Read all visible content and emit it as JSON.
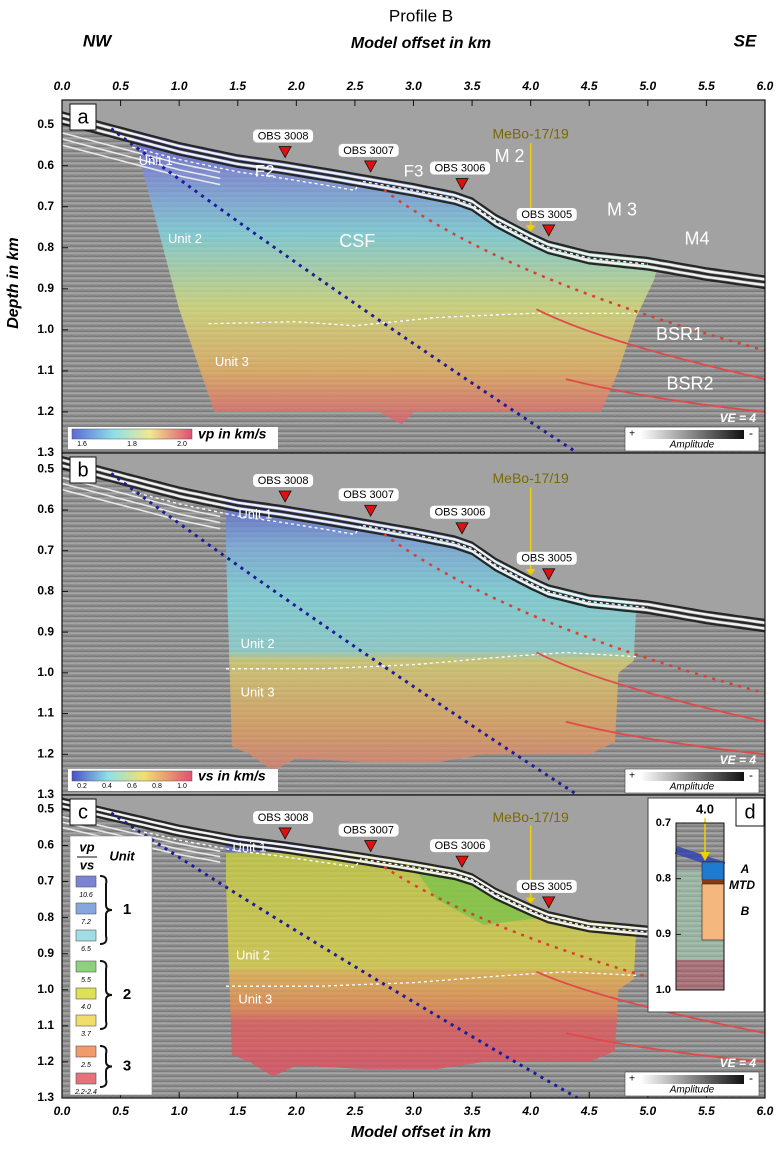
{
  "header": {
    "title": "Profile B",
    "top_axis_label": "Model offset in km",
    "left_direction": "NW",
    "right_direction": "SE",
    "y_axis_label": "Depth in km",
    "bottom_axis_label": "Model offset in km"
  },
  "chart_data": [
    {
      "type": "section",
      "panel_label": "a",
      "xlim": [
        0,
        6
      ],
      "ylim": [
        0.44,
        1.3
      ],
      "xtick_side": "top",
      "xticks": [
        {
          "value": 0,
          "label": "0.0"
        },
        0.5,
        {
          "value": 1,
          "label": "1.0"
        },
        1.5,
        {
          "value": 2,
          "label": "2.0"
        },
        2.5,
        {
          "value": 3,
          "label": "3.0"
        },
        3.5,
        {
          "value": 4,
          "label": "4.0"
        },
        4.5,
        {
          "value": 5,
          "label": "5.0"
        },
        5.5,
        {
          "value": 6,
          "label": "6.0"
        }
      ],
      "yticks": [
        0.5,
        0.6,
        0.7,
        0.8,
        0.9,
        {
          "value": 1,
          "label": "1.0"
        },
        1.1,
        1.2,
        1.3
      ],
      "obs": [
        {
          "label": "OBS 3008",
          "x": 1.87
        },
        {
          "label": "OBS 3007",
          "x": 2.6
        },
        {
          "label": "OBS 3006",
          "x": 3.38
        },
        {
          "label": "OBS 3005",
          "x": 4.12
        }
      ],
      "well": {
        "label": "MeBo-17/19",
        "x": 4.0
      },
      "annotations": [
        "Unit 1",
        "Unit 2",
        "Unit 3",
        "F2",
        "F3",
        "M 2",
        "M 3",
        "M4",
        "CSF",
        "BSR1",
        "BSR2"
      ],
      "colorbar": {
        "label": "vp in km/s",
        "ticks": [
          "1.6",
          "1.8",
          "2.0"
        ]
      },
      "amplitude": {
        "plus": "+",
        "label": "Amplitude",
        "minus": "-"
      },
      "ve": "VE = 4"
    },
    {
      "type": "section",
      "panel_label": "b",
      "xlim": [
        0,
        6
      ],
      "ylim": [
        0.46,
        1.3
      ],
      "yticks": [
        0.5,
        0.6,
        0.7,
        0.8,
        0.9,
        {
          "value": 1,
          "label": "1.0"
        },
        1.1,
        1.2,
        1.3
      ],
      "obs": [
        {
          "label": "OBS 3008",
          "x": 1.87
        },
        {
          "label": "OBS 3007",
          "x": 2.6
        },
        {
          "label": "OBS 3006",
          "x": 3.38
        },
        {
          "label": "OBS 3005",
          "x": 4.12
        }
      ],
      "well": {
        "label": "MeBo-17/19",
        "x": 4.0
      },
      "annotations": [
        "Unit 1",
        "Unit 2",
        "Unit 3"
      ],
      "colorbar": {
        "label": "vs in km/s",
        "ticks": [
          "0.2",
          "0.4",
          "0.6",
          "0.8",
          "1.0"
        ]
      },
      "amplitude": {
        "plus": "+",
        "label": "Amplitude",
        "minus": "-"
      },
      "ve": "VE = 4"
    },
    {
      "type": "section",
      "panel_label": "c",
      "xlim": [
        0,
        6
      ],
      "ylim": [
        0.46,
        1.3
      ],
      "xtick_side": "bottom",
      "xticks": [
        {
          "value": 0,
          "label": "0.0"
        },
        0.5,
        {
          "value": 1,
          "label": "1.0"
        },
        1.5,
        {
          "value": 2,
          "label": "2.0"
        },
        2.5,
        {
          "value": 3,
          "label": "3.0"
        },
        3.5,
        {
          "value": 4,
          "label": "4.0"
        },
        4.5,
        {
          "value": 5,
          "label": "5.0"
        },
        5.5,
        {
          "value": 6,
          "label": "6.0"
        }
      ],
      "yticks": [
        0.5,
        0.6,
        0.7,
        0.8,
        0.9,
        {
          "value": 1,
          "label": "1.0"
        },
        1.1,
        1.2,
        1.3
      ],
      "obs": [
        {
          "label": "OBS 3008",
          "x": 1.87
        },
        {
          "label": "OBS 3007",
          "x": 2.6
        },
        {
          "label": "OBS 3006",
          "x": 3.38
        },
        {
          "label": "OBS 3005",
          "x": 4.12
        }
      ],
      "well": {
        "label": "MeBo-17/19",
        "x": 4.0
      },
      "annotations": [
        "Unit 1",
        "Unit 2",
        "Unit 3"
      ],
      "amplitude": {
        "plus": "+",
        "label": "Amplitude",
        "minus": "-"
      },
      "ve": "VE = 4",
      "legend": {
        "ratio_top": "vp",
        "ratio_bottom": "vs",
        "unit_header": "Unit",
        "entries": [
          {
            "ratio": "10.6",
            "color": "#7b83d4"
          },
          {
            "ratio": "7.2",
            "color": "#86a6de"
          },
          {
            "ratio": "6.5",
            "color": "#a2dde6"
          },
          {
            "ratio": "5.5",
            "color": "#8fd07f"
          },
          {
            "ratio": "4.0",
            "color": "#dfe05a"
          },
          {
            "ratio": "3.7",
            "color": "#f2dc6a"
          },
          {
            "ratio": "2.5",
            "color": "#f19a6a"
          },
          {
            "ratio": "2.2-2.4",
            "color": "#e8707a"
          }
        ],
        "units": [
          "1",
          "2",
          "3"
        ]
      },
      "inset": {
        "label": "d",
        "x_label": "4.0",
        "ylim": [
          0.7,
          1.0
        ],
        "yticks": [
          0.7,
          0.8,
          0.9,
          {
            "value": 1,
            "label": "1.0"
          }
        ],
        "layers": [
          "A",
          "MTD",
          "B"
        ]
      }
    }
  ]
}
